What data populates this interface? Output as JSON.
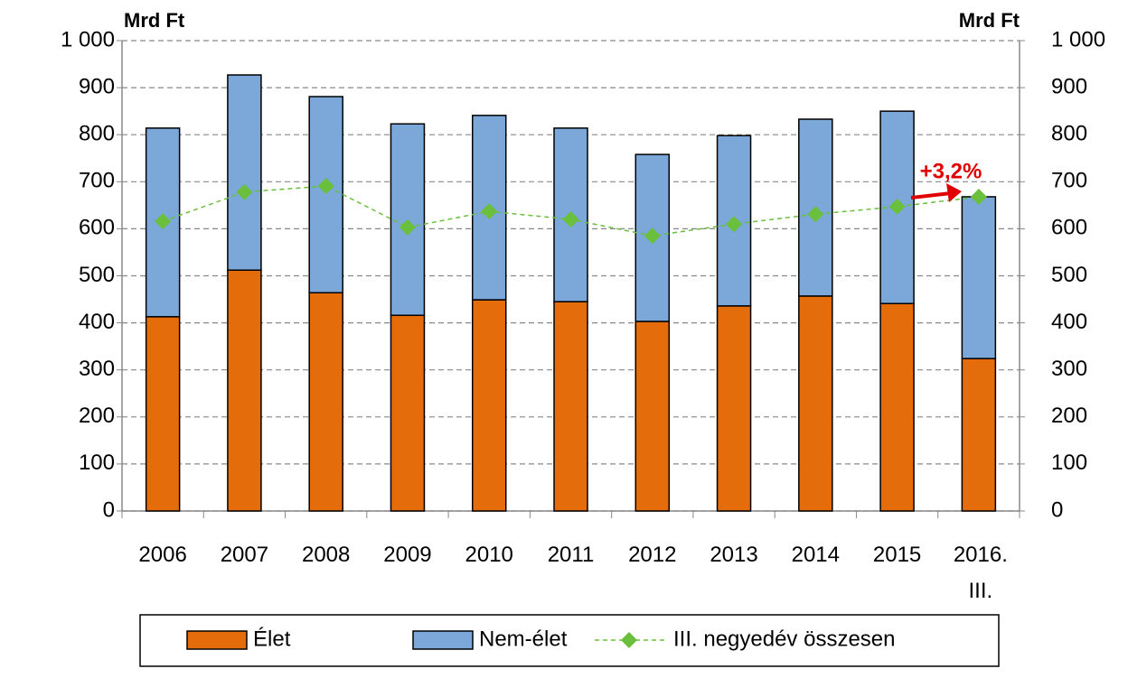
{
  "chart_data": {
    "type": "bar",
    "stacked": true,
    "categories": [
      "2006",
      "2007",
      "2008",
      "2009",
      "2010",
      "2011",
      "2012",
      "2013",
      "2014",
      "2015",
      "2016.\nIII."
    ],
    "series": [
      {
        "name": "Élet",
        "type": "bar",
        "color": "#e46c0a",
        "values": [
          413,
          512,
          464,
          416,
          449,
          445,
          403,
          436,
          457,
          441,
          324
        ]
      },
      {
        "name": "Nem-élet",
        "type": "bar",
        "color": "#7ba7d9",
        "values": [
          401,
          415,
          417,
          407,
          392,
          369,
          355,
          362,
          376,
          409,
          344
        ]
      },
      {
        "name": "III. negyedév összesen",
        "type": "line",
        "color": "#6abf3c",
        "values": [
          616,
          678,
          691,
          603,
          637,
          620,
          585,
          610,
          631,
          647,
          668
        ]
      }
    ],
    "ylabel": "Mrd Ft",
    "y2label": "Mrd Ft",
    "ylim": [
      0,
      1000
    ],
    "yticks": [
      0,
      100,
      200,
      300,
      400,
      500,
      600,
      700,
      800,
      900,
      {
        "value": 1000,
        "label": "1 000"
      }
    ],
    "y2lim": [
      0,
      1000
    ],
    "y2ticks": [
      0,
      100,
      200,
      300,
      400,
      500,
      600,
      700,
      800,
      900,
      {
        "value": 1000,
        "label": "1 000"
      }
    ],
    "annotation": "+3,2%",
    "grid": true,
    "legend": "bottom"
  }
}
